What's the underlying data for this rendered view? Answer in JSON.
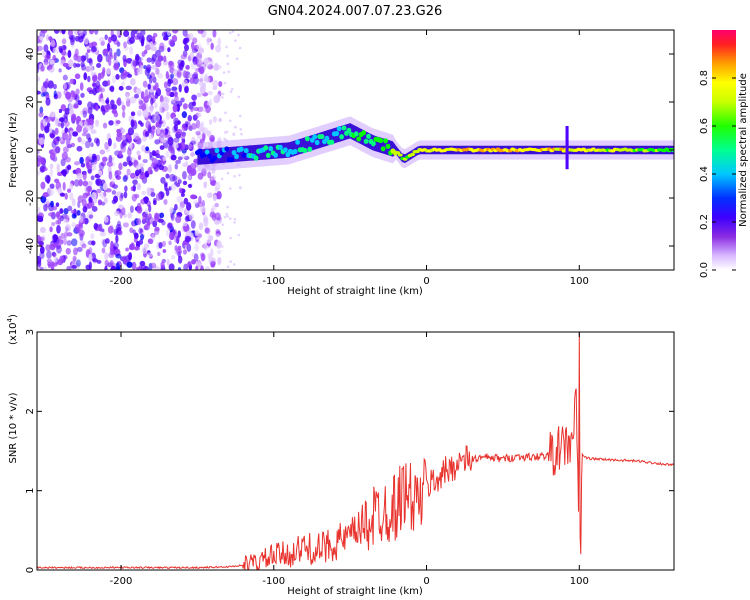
{
  "figure_title": "GN04.2024.007.07.23.G26",
  "chart_data": [
    {
      "type": "heatmap",
      "xlabel": "Height of straight line (km)",
      "ylabel": "Frequency (Hz)",
      "xlim": [
        -255,
        162
      ],
      "ylim": [
        -50,
        50
      ],
      "x_ticks": [
        -200,
        -100,
        0,
        100
      ],
      "y_ticks": [
        -40,
        -20,
        0,
        20,
        40
      ],
      "colorbar": {
        "label": "Normalized spectral amplitude",
        "range": [
          0.0,
          1.0
        ],
        "ticks": [
          0.0,
          0.2,
          0.4,
          0.6,
          0.8
        ],
        "colormap": [
          "#ffffff",
          "#e0c8ff",
          "#9b40ff",
          "#5000ff",
          "#0000ff",
          "#00c8ff",
          "#00ff80",
          "#00ff00",
          "#c8ff00",
          "#ffff00",
          "#ffa000",
          "#ff2020",
          "#ff0080"
        ]
      },
      "ridge": [
        {
          "x": -150,
          "freq": -3,
          "amp": 0.35
        },
        {
          "x": -130,
          "freq": -2,
          "amp": 0.4
        },
        {
          "x": -110,
          "freq": -1,
          "amp": 0.45
        },
        {
          "x": -90,
          "freq": 0,
          "amp": 0.45
        },
        {
          "x": -70,
          "freq": 4,
          "amp": 0.45
        },
        {
          "x": -50,
          "freq": 8,
          "amp": 0.5
        },
        {
          "x": -35,
          "freq": 3,
          "amp": 0.55
        },
        {
          "x": -20,
          "freq": 0,
          "amp": 0.6
        },
        {
          "x": -15,
          "freq": -4,
          "amp": 0.6
        },
        {
          "x": -5,
          "freq": 0,
          "amp": 0.7
        },
        {
          "x": 40,
          "freq": 0,
          "amp": 0.8
        },
        {
          "x": 90,
          "freq": 0,
          "amp": 0.75
        },
        {
          "x": 162,
          "freq": 0,
          "amp": 0.55
        }
      ]
    },
    {
      "type": "line",
      "xlabel": "Height of straight line (km)",
      "ylabel": "SNR (10 * v/v)",
      "y_multiplier": "(x10",
      "y_multiplier_exp": "4",
      "y_multiplier_close": ")",
      "xlim": [
        -255,
        162
      ],
      "ylim": [
        0,
        3
      ],
      "x_ticks": [
        -200,
        -100,
        0,
        100
      ],
      "y_ticks": [
        0,
        1,
        2,
        3
      ],
      "line_color": "#e8322d",
      "series": [
        {
          "x": [
            -255,
            -200,
            -150,
            -130,
            -120,
            -110,
            -100,
            -90,
            -80,
            -70,
            -60,
            -50,
            -40,
            -30,
            -20,
            -15,
            -10,
            -5,
            0,
            10,
            20,
            30,
            40,
            50,
            60,
            70,
            80,
            85,
            90,
            95,
            98,
            100,
            102,
            105,
            110,
            120,
            140,
            162
          ],
          "values": [
            0.03,
            0.03,
            0.03,
            0.04,
            0.06,
            0.1,
            0.18,
            0.2,
            0.28,
            0.25,
            0.35,
            0.4,
            0.6,
            0.75,
            0.8,
            1.0,
            0.9,
            0.85,
            1.05,
            1.2,
            1.35,
            1.4,
            1.42,
            1.4,
            1.43,
            1.42,
            1.45,
            1.5,
            1.55,
            1.6,
            2.1,
            0.3,
            1.45,
            1.41,
            1.4,
            1.39,
            1.37,
            1.32
          ]
        }
      ]
    }
  ]
}
